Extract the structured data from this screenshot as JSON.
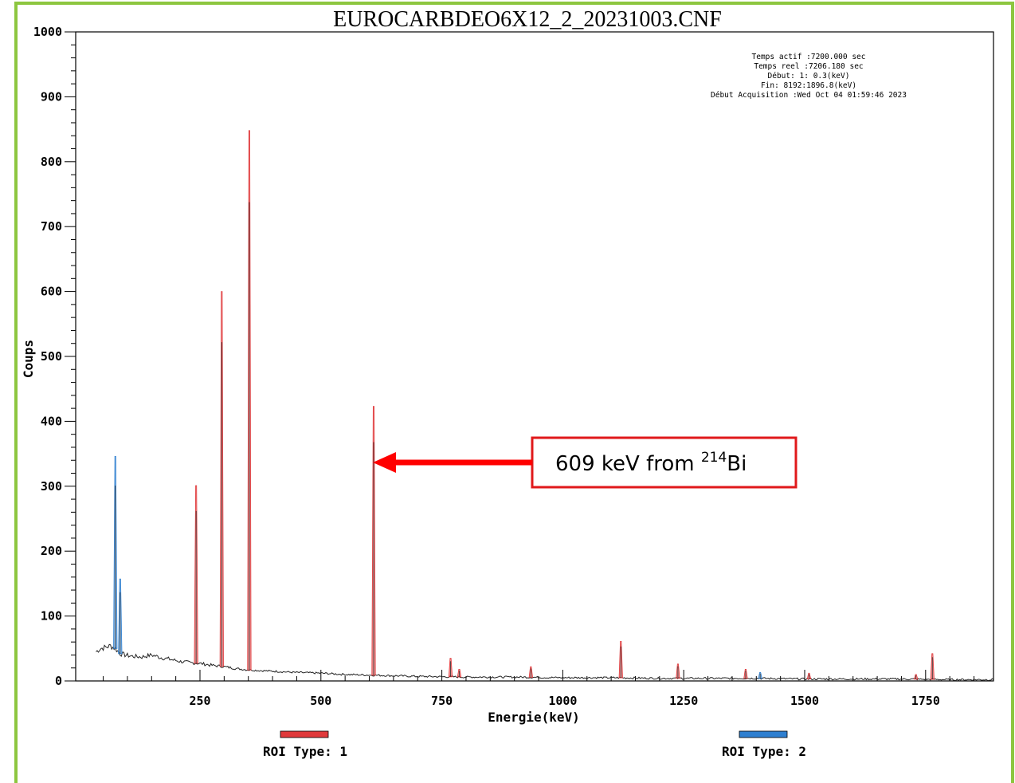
{
  "chart_data": {
    "type": "line",
    "title": "EUROCARBDEO6X12_2_20231003.CNF",
    "xlabel": "Energie(keV)",
    "ylabel": "Coups",
    "xlim": [
      0,
      1900
    ],
    "ylim": [
      0,
      1000
    ],
    "x_ticks": [
      250,
      500,
      750,
      1000,
      1250,
      1500,
      1750
    ],
    "y_ticks": [
      0,
      100,
      200,
      300,
      400,
      500,
      600,
      700,
      800,
      900,
      1000
    ],
    "grid": false,
    "info_box": [
      "Temps actif   :7200.000 sec",
      "Temps reel :7206.180 sec",
      "Début:    1:   0.3(keV)",
      "Fin: 8192:1896.8(keV)",
      "Début Acquisition :Wed Oct 04 01:59:46 2023"
    ],
    "background": [
      [
        35,
        45
      ],
      [
        45,
        50
      ],
      [
        55,
        52
      ],
      [
        65,
        54
      ],
      [
        75,
        50
      ],
      [
        85,
        42
      ],
      [
        95,
        40
      ],
      [
        110,
        38
      ],
      [
        130,
        37
      ],
      [
        150,
        40
      ],
      [
        170,
        36
      ],
      [
        190,
        33
      ],
      [
        210,
        30
      ],
      [
        230,
        28
      ],
      [
        250,
        27
      ],
      [
        275,
        24
      ],
      [
        300,
        22
      ],
      [
        325,
        19
      ],
      [
        350,
        17
      ],
      [
        375,
        16
      ],
      [
        400,
        15
      ],
      [
        450,
        13
      ],
      [
        500,
        12
      ],
      [
        550,
        10
      ],
      [
        600,
        9
      ],
      [
        650,
        8
      ],
      [
        700,
        7
      ],
      [
        800,
        6
      ],
      [
        900,
        6
      ],
      [
        1000,
        5
      ],
      [
        1100,
        5
      ],
      [
        1200,
        4
      ],
      [
        1300,
        4
      ],
      [
        1400,
        4
      ],
      [
        1500,
        3
      ],
      [
        1600,
        3
      ],
      [
        1700,
        3
      ],
      [
        1800,
        2
      ],
      [
        1890,
        2
      ]
    ],
    "series": [
      {
        "name": "ROI Type: 1",
        "color": "#e0393b",
        "peaks": [
          {
            "x": 242,
            "y": 301
          },
          {
            "x": 295,
            "y": 600
          },
          {
            "x": 352,
            "y": 848
          },
          {
            "x": 609,
            "y": 423
          },
          {
            "x": 768,
            "y": 35
          },
          {
            "x": 786,
            "y": 18
          },
          {
            "x": 934,
            "y": 22
          },
          {
            "x": 1120,
            "y": 61
          },
          {
            "x": 1238,
            "y": 26
          },
          {
            "x": 1378,
            "y": 18
          },
          {
            "x": 1509,
            "y": 12
          },
          {
            "x": 1730,
            "y": 10
          },
          {
            "x": 1764,
            "y": 42
          }
        ]
      },
      {
        "name": "ROI Type: 2",
        "color": "#2e7fd0",
        "peaks": [
          {
            "x": 75,
            "y": 346
          },
          {
            "x": 85,
            "y": 157
          },
          {
            "x": 1408,
            "y": 13
          }
        ]
      }
    ],
    "annotation": {
      "text": "609 keV from ",
      "superscript": "214",
      "element": "Bi",
      "points_to_x": 609,
      "points_to_y": 370,
      "arrow_color": "#ff0000",
      "box_border_color": "#e0191b"
    }
  }
}
